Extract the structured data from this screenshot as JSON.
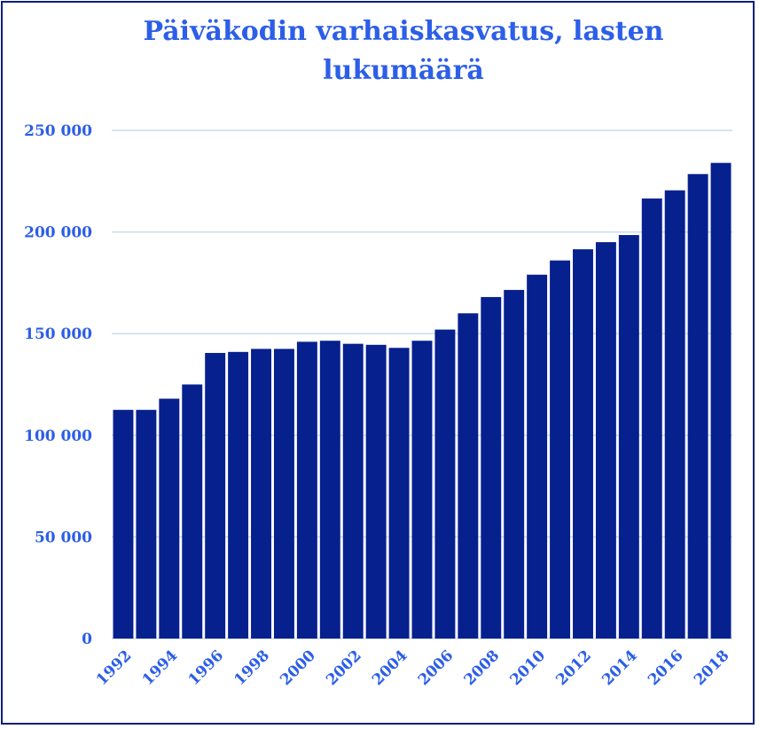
{
  "chart_data": {
    "type": "bar",
    "title": "Päiväkodin varhaiskasvatus, lasten lukumäärä",
    "xlabel": "",
    "ylabel": "",
    "categories": [
      "1992",
      "1993",
      "1994",
      "1995",
      "1996",
      "1997",
      "1998",
      "1999",
      "2000",
      "2001",
      "2002",
      "2003",
      "2004",
      "2005",
      "2006",
      "2007",
      "2008",
      "2009",
      "2010",
      "2011",
      "2012",
      "2013",
      "2014",
      "2015",
      "2016",
      "2017",
      "2018"
    ],
    "values": [
      112500,
      112500,
      118000,
      125000,
      140500,
      141000,
      142500,
      142500,
      146000,
      146500,
      145000,
      144500,
      143000,
      146500,
      152000,
      160000,
      168000,
      171500,
      179000,
      186000,
      191500,
      195000,
      198500,
      216500,
      220500,
      228500,
      234000
    ],
    "ylim": [
      0,
      250000
    ],
    "yticks": [
      0,
      50000,
      100000,
      150000,
      200000,
      250000
    ],
    "ytick_labels": [
      "0",
      "50 000",
      "100 000",
      "150 000",
      "200 000",
      "250 000"
    ],
    "xtick_labels": [
      "1992",
      "1994",
      "1996",
      "1998",
      "2000",
      "2002",
      "2004",
      "2006",
      "2008",
      "2010",
      "2012",
      "2014",
      "2016",
      "2018"
    ],
    "grid": true,
    "legend": "none",
    "colors": {
      "bar": "#06208e",
      "text": "#2c5ee8",
      "grid": "#c9dcef",
      "frame": "#0b1f7a"
    }
  }
}
